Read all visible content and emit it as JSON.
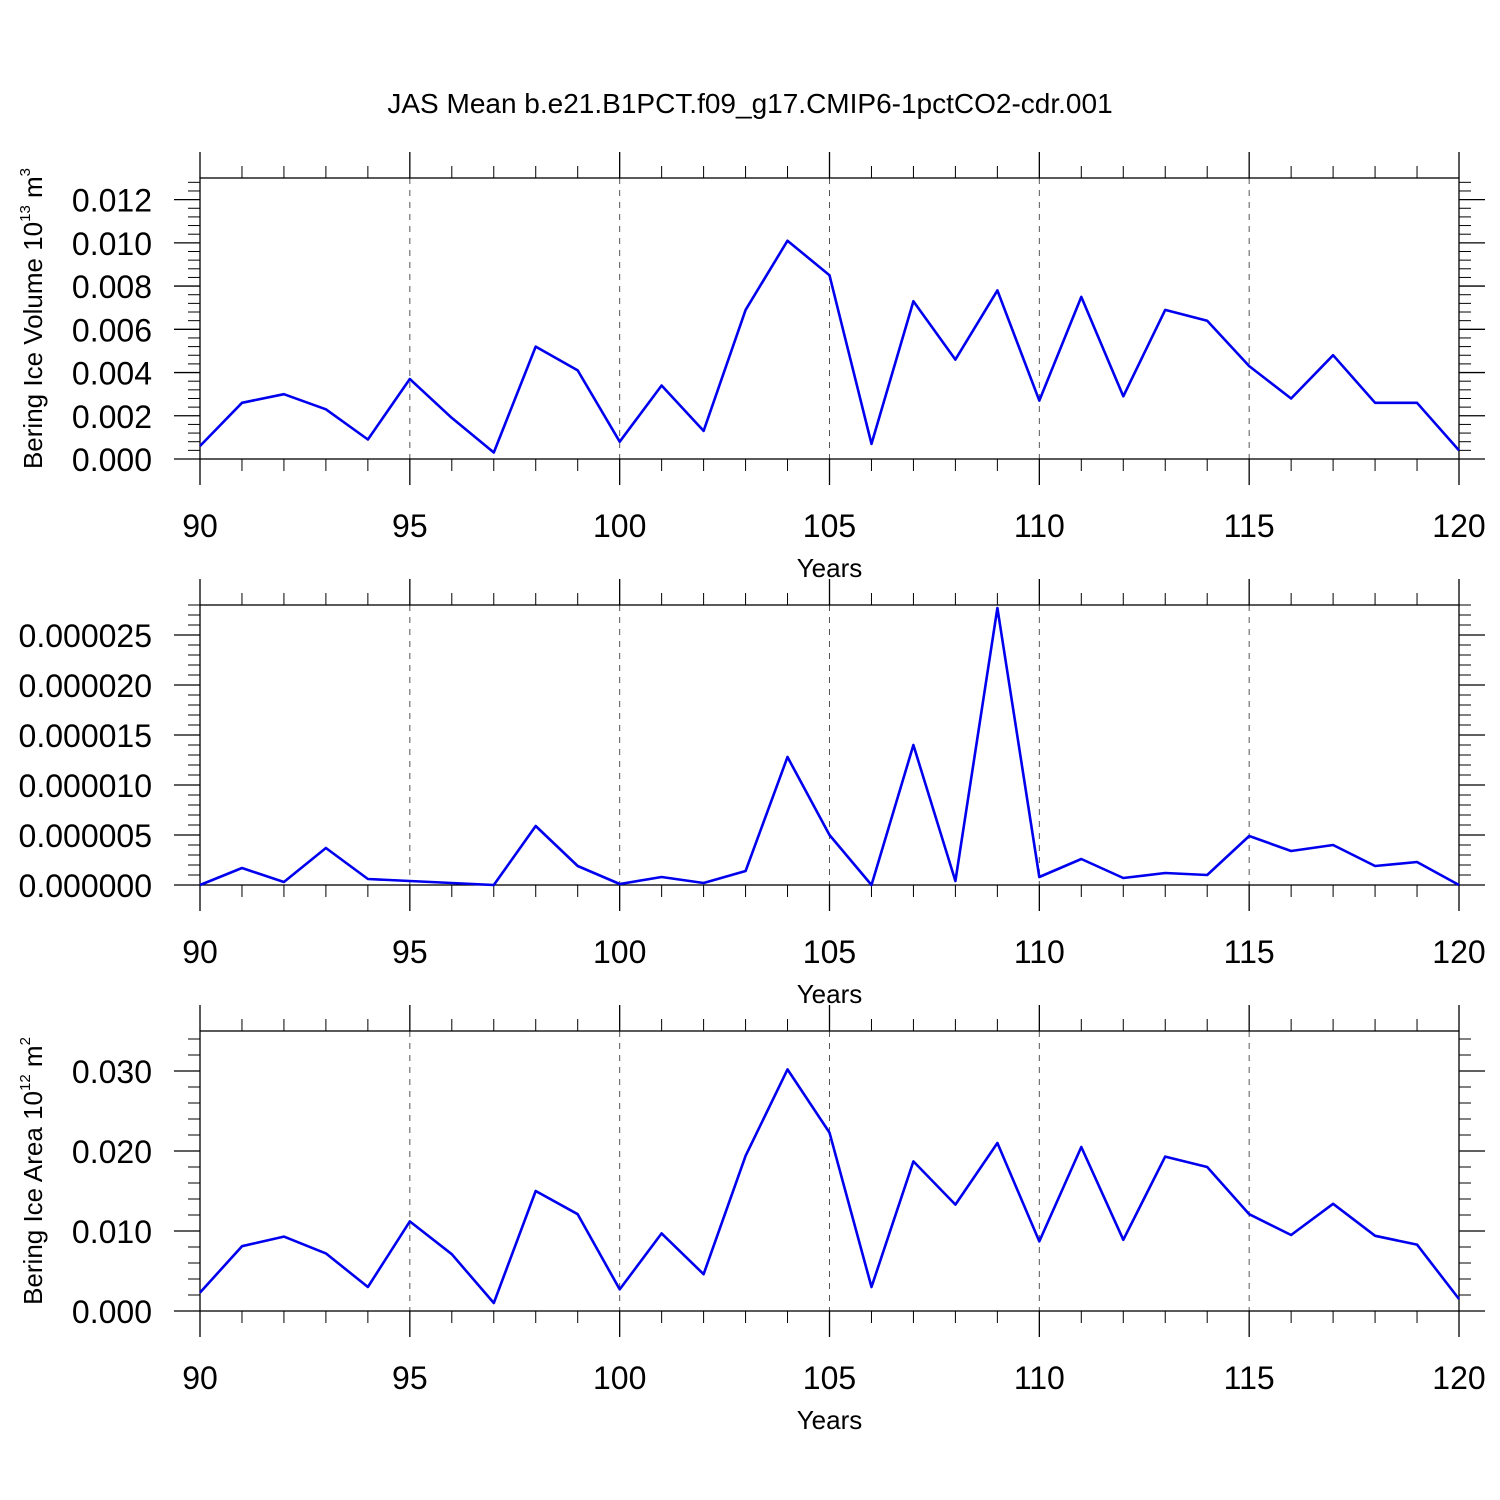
{
  "title": "JAS Mean b.e21.B1PCT.f09_g17.CMIP6-1pctCO2-cdr.001",
  "colors": {
    "series": "#0000ee",
    "axis": "#000000",
    "grid": "#555555"
  },
  "chart_data": [
    {
      "type": "line",
      "xlabel": "Years",
      "ylabel_main": "Bering Ice Volume 10",
      "ylabel_exp": "13",
      "ylabel_unit": " m",
      "ylabel_unit_exp": "3",
      "xlim": [
        90,
        120
      ],
      "ylim": [
        0,
        0.013
      ],
      "x_ticks": [
        90,
        95,
        100,
        105,
        110,
        115,
        120
      ],
      "x_tick_labels": [
        "90",
        "95",
        "100",
        "105",
        "110",
        "115",
        "120"
      ],
      "y_ticks": [
        0,
        0.002,
        0.004,
        0.006,
        0.008,
        0.01,
        0.012
      ],
      "y_tick_labels": [
        "0.000",
        "0.002",
        "0.004",
        "0.006",
        "0.008",
        "0.010",
        "0.012"
      ],
      "y_minor_step": 0.0004,
      "grid_x": true,
      "x": [
        90,
        91,
        92,
        93,
        94,
        95,
        96,
        97,
        98,
        99,
        100,
        101,
        102,
        103,
        104,
        105,
        106,
        107,
        108,
        109,
        110,
        111,
        112,
        113,
        114,
        115,
        116,
        117,
        118,
        119,
        120
      ],
      "values": [
        0.0006,
        0.0026,
        0.003,
        0.0023,
        0.0009,
        0.0037,
        0.0019,
        0.0003,
        0.0052,
        0.0041,
        0.0008,
        0.0034,
        0.0013,
        0.0069,
        0.0101,
        0.0085,
        0.0007,
        0.0073,
        0.0046,
        0.0078,
        0.0027,
        0.0075,
        0.0029,
        0.0069,
        0.0064,
        0.0043,
        0.0028,
        0.0048,
        0.0026,
        0.0026,
        0.0004
      ]
    },
    {
      "type": "line",
      "xlabel": "Years",
      "ylabel_main": "",
      "ylabel_exp": "",
      "ylabel_unit": "",
      "ylabel_unit_exp": "",
      "xlim": [
        90,
        120
      ],
      "ylim": [
        0,
        2.8e-05
      ],
      "x_ticks": [
        90,
        95,
        100,
        105,
        110,
        115,
        120
      ],
      "x_tick_labels": [
        "90",
        "95",
        "100",
        "105",
        "110",
        "115",
        "120"
      ],
      "y_ticks": [
        0,
        5e-06,
        1e-05,
        1.5e-05,
        2e-05,
        2.5e-05
      ],
      "y_tick_labels": [
        "0.000000",
        "0.000005",
        "0.000010",
        "0.000015",
        "0.000020",
        "0.000025"
      ],
      "y_minor_step": 1e-06,
      "grid_x": true,
      "x": [
        90,
        91,
        92,
        93,
        94,
        95,
        96,
        97,
        98,
        99,
        100,
        101,
        102,
        103,
        104,
        105,
        106,
        107,
        108,
        109,
        110,
        111,
        112,
        113,
        114,
        115,
        116,
        117,
        118,
        119,
        120
      ],
      "values": [
        0.0,
        1.7e-06,
        3e-07,
        3.7e-06,
        6e-07,
        4e-07,
        2e-07,
        0.0,
        5.9e-06,
        1.9e-06,
        1e-07,
        8e-07,
        2e-07,
        1.4e-06,
        1.28e-05,
        5e-06,
        0.0,
        1.4e-05,
        4e-07,
        2.77e-05,
        8e-07,
        2.6e-06,
        7e-07,
        1.2e-06,
        1e-06,
        4.9e-06,
        3.4e-06,
        4e-06,
        1.9e-06,
        2.3e-06,
        0.0
      ]
    },
    {
      "type": "line",
      "xlabel": "Years",
      "ylabel_main": "Bering Ice Area 10",
      "ylabel_exp": "12",
      "ylabel_unit": " m",
      "ylabel_unit_exp": "2",
      "xlim": [
        90,
        120
      ],
      "ylim": [
        0,
        0.035
      ],
      "x_ticks": [
        90,
        95,
        100,
        105,
        110,
        115,
        120
      ],
      "x_tick_labels": [
        "90",
        "95",
        "100",
        "105",
        "110",
        "115",
        "120"
      ],
      "y_ticks": [
        0,
        0.01,
        0.02,
        0.03
      ],
      "y_tick_labels": [
        "0.000",
        "0.010",
        "0.020",
        "0.030"
      ],
      "y_minor_step": 0.002,
      "grid_x": true,
      "x": [
        90,
        91,
        92,
        93,
        94,
        95,
        96,
        97,
        98,
        99,
        100,
        101,
        102,
        103,
        104,
        105,
        106,
        107,
        108,
        109,
        110,
        111,
        112,
        113,
        114,
        115,
        116,
        117,
        118,
        119,
        120
      ],
      "values": [
        0.0023,
        0.0081,
        0.0093,
        0.0072,
        0.003,
        0.0112,
        0.0071,
        0.001,
        0.015,
        0.0121,
        0.0027,
        0.0097,
        0.0046,
        0.0194,
        0.0302,
        0.0223,
        0.003,
        0.0187,
        0.0133,
        0.021,
        0.0087,
        0.0205,
        0.0089,
        0.0193,
        0.018,
        0.0121,
        0.0095,
        0.0134,
        0.0094,
        0.0083,
        0.0015
      ]
    }
  ]
}
